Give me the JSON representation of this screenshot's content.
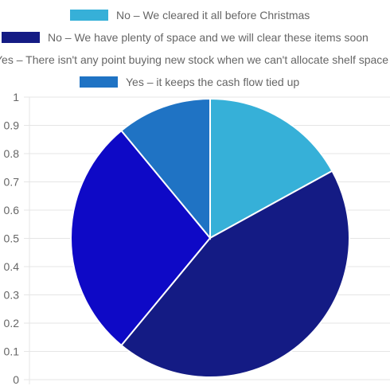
{
  "chart_data": {
    "type": "pie",
    "labels": [
      "No – We cleared it all before Christmas",
      "No – We have plenty of space and we will clear these items soon",
      "Yes – There isn't any point buying new stock when we can't allocate shelf space",
      "Yes – it keeps the cash flow tied up"
    ],
    "values": [
      17,
      44,
      28,
      11
    ],
    "colors": [
      "#36b0d8",
      "#141b84",
      "#0e09c6",
      "#1f73c4"
    ],
    "legend_position": "top",
    "y_axis": {
      "min": 0,
      "max": 1,
      "ticks": [
        "0",
        "0.1",
        "0.2",
        "0.3",
        "0.4",
        "0.5",
        "0.6",
        "0.7",
        "0.8",
        "0.9",
        "1"
      ]
    },
    "grid": true
  }
}
